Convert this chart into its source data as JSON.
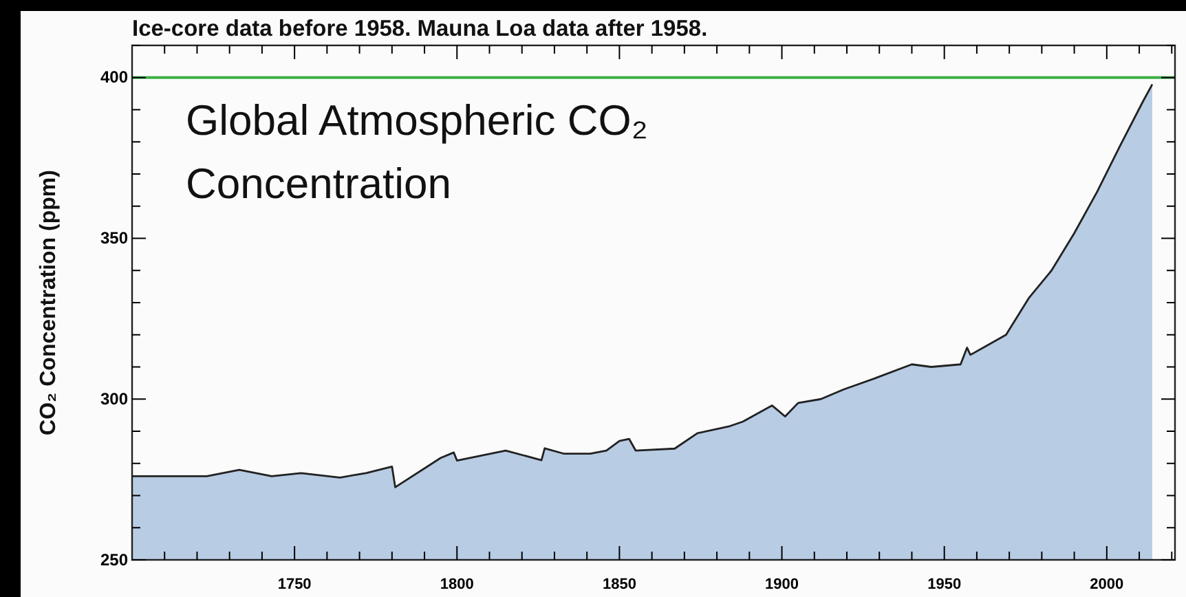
{
  "chart_data": {
    "type": "area",
    "title": "Ice-core data before 1958. Mauna Loa data after 1958.",
    "ylabel": "CO₂ Concentration (ppm)",
    "annotations": [
      "Global Atmospheric CO₂ Concentration"
    ],
    "xlim": [
      1700,
      2021
    ],
    "ylim": [
      250,
      410
    ],
    "xticks": [
      {
        "value": 1710,
        "label": null
      },
      {
        "value": 1720,
        "label": null
      },
      {
        "value": 1730,
        "label": null
      },
      {
        "value": 1740,
        "label": null
      },
      1750,
      {
        "value": 1760,
        "label": null
      },
      {
        "value": 1770,
        "label": null
      },
      {
        "value": 1780,
        "label": null
      },
      {
        "value": 1790,
        "label": null
      },
      1800,
      {
        "value": 1810,
        "label": null
      },
      {
        "value": 1820,
        "label": null
      },
      {
        "value": 1830,
        "label": null
      },
      {
        "value": 1840,
        "label": null
      },
      1850,
      {
        "value": 1860,
        "label": null
      },
      {
        "value": 1870,
        "label": null
      },
      {
        "value": 1880,
        "label": null
      },
      {
        "value": 1890,
        "label": null
      },
      1900,
      {
        "value": 1910,
        "label": null
      },
      {
        "value": 1920,
        "label": null
      },
      {
        "value": 1930,
        "label": null
      },
      {
        "value": 1940,
        "label": null
      },
      1950,
      {
        "value": 1960,
        "label": null
      },
      {
        "value": 1970,
        "label": null
      },
      {
        "value": 1980,
        "label": null
      },
      {
        "value": 1990,
        "label": null
      },
      2000,
      {
        "value": 2010,
        "label": null
      },
      {
        "value": 2020,
        "label": null
      }
    ],
    "yticks": [
      250,
      {
        "value": 260,
        "label": null
      },
      {
        "value": 270,
        "label": null
      },
      {
        "value": 280,
        "label": null
      },
      {
        "value": 290,
        "label": null
      },
      300,
      {
        "value": 310,
        "label": null
      },
      {
        "value": 320,
        "label": null
      },
      {
        "value": 330,
        "label": null
      },
      {
        "value": 340,
        "label": null
      },
      350,
      {
        "value": 360,
        "label": null
      },
      {
        "value": 370,
        "label": null
      },
      {
        "value": 380,
        "label": null
      },
      {
        "value": 390,
        "label": null
      },
      400,
      {
        "value": 410,
        "label": null
      }
    ],
    "grid": false,
    "ref_lines": [
      {
        "axis": "y",
        "value": 400,
        "color": "#3cb043"
      }
    ],
    "x": [
      1700,
      1723,
      1733,
      1743,
      1752,
      1764,
      1772,
      1780,
      1781,
      1795,
      1799,
      1800,
      1815,
      1826,
      1827,
      1833,
      1841,
      1846,
      1850,
      1853,
      1855,
      1867,
      1874,
      1884,
      1888,
      1897,
      1901,
      1905,
      1912,
      1919,
      1929,
      1940,
      1946,
      1955,
      1957,
      1958,
      1959,
      1969,
      1976,
      1983,
      1990,
      1997,
      2004,
      2011,
      2014
    ],
    "series": [
      {
        "color": "#b8cce4",
        "values": [
          276,
          276,
          278,
          276,
          277,
          275.6,
          277,
          279,
          272.6,
          281.7,
          283.4,
          280.9,
          284,
          281,
          284.7,
          283,
          283,
          284,
          287,
          287.6,
          284,
          284.6,
          289.4,
          291.6,
          293,
          298,
          294.6,
          298.8,
          300,
          303,
          306.6,
          310.8,
          310,
          310.8,
          316,
          313.8,
          314.3,
          320,
          331.4,
          340,
          351.6,
          364.4,
          378.6,
          392.3,
          397.9
        ]
      }
    ]
  }
}
